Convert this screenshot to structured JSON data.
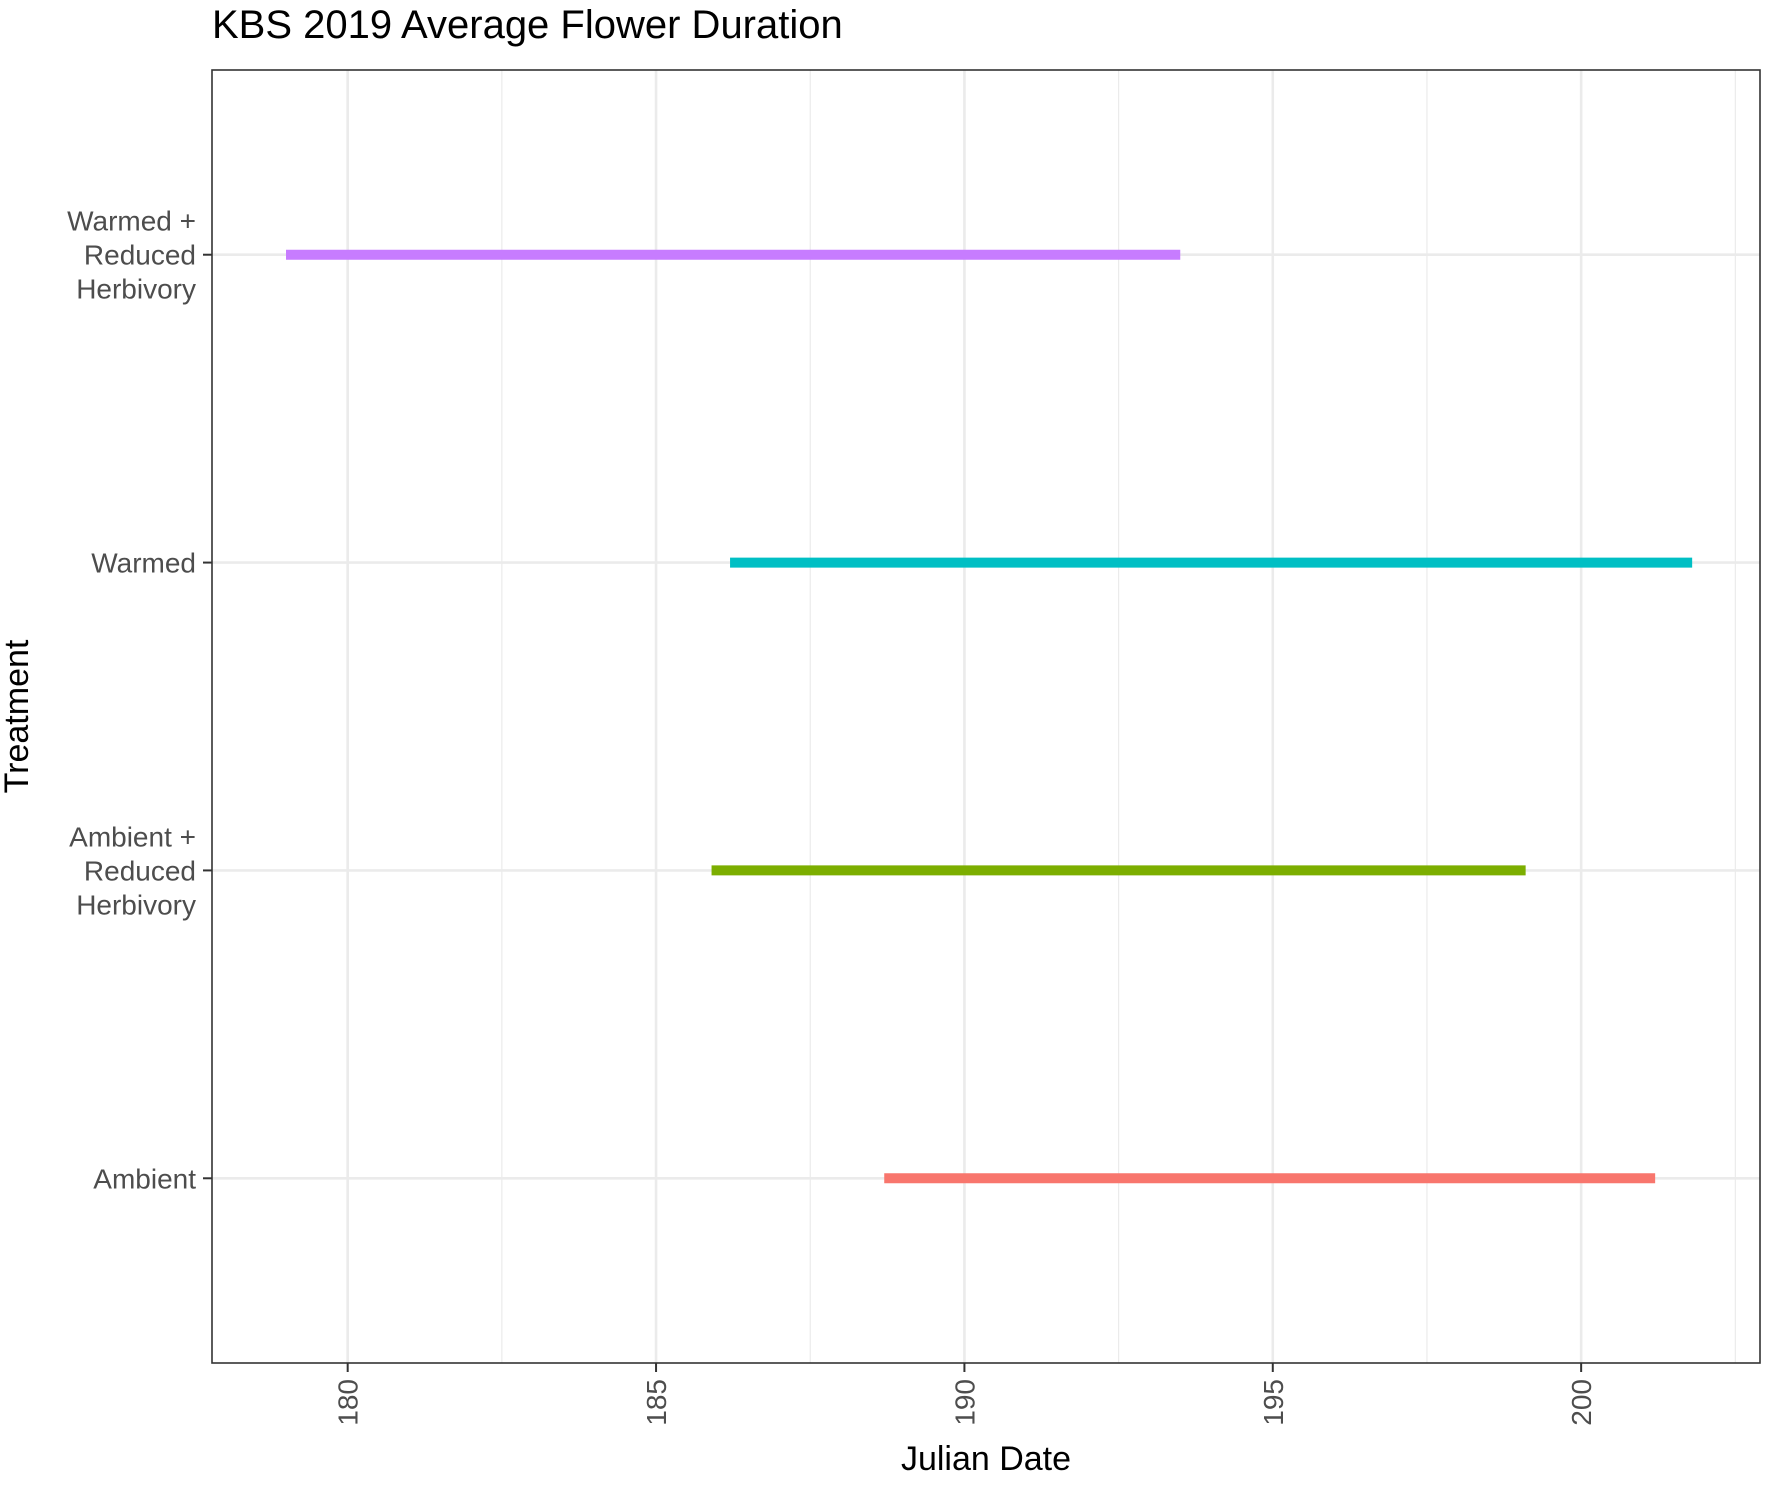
{
  "chart_data": {
    "type": "segment",
    "title": "KBS 2019 Average Flower Duration",
    "xlabel": "Julian Date",
    "ylabel": "Treatment",
    "xlim": [
      177.8,
      202.9
    ],
    "x_ticks": [
      180,
      185,
      190,
      195,
      200
    ],
    "x_tick_labels": [
      "180",
      "185",
      "190",
      "195",
      "200"
    ],
    "x_tick_label_rotation": "vertical",
    "categories": [
      "Ambient",
      "Ambient + Reduced Herbivory",
      "Warmed",
      "Warmed + Reduced Herbivory"
    ],
    "category_label_lines": [
      [
        "Ambient"
      ],
      [
        "Ambient +",
        "Reduced",
        "Herbivory"
      ],
      [
        "Warmed"
      ],
      [
        "Warmed +",
        "Reduced",
        "Herbivory"
      ]
    ],
    "series": [
      {
        "category": "Ambient",
        "start": 188.7,
        "end": 201.2,
        "color": "#F8766D"
      },
      {
        "category": "Ambient + Reduced Herbivory",
        "start": 185.9,
        "end": 199.1,
        "color": "#7CAE00"
      },
      {
        "category": "Warmed",
        "start": 186.2,
        "end": 201.8,
        "color": "#00BFC4"
      },
      {
        "category": "Warmed + Reduced Herbivory",
        "start": 179.0,
        "end": 193.5,
        "color": "#C77CFF"
      }
    ],
    "grid": true,
    "legend": "none",
    "colors": {
      "panel_border": "#333333",
      "grid": "#ebebeb",
      "tick_text": "#4d4d4d",
      "title_text": "#000000"
    }
  }
}
